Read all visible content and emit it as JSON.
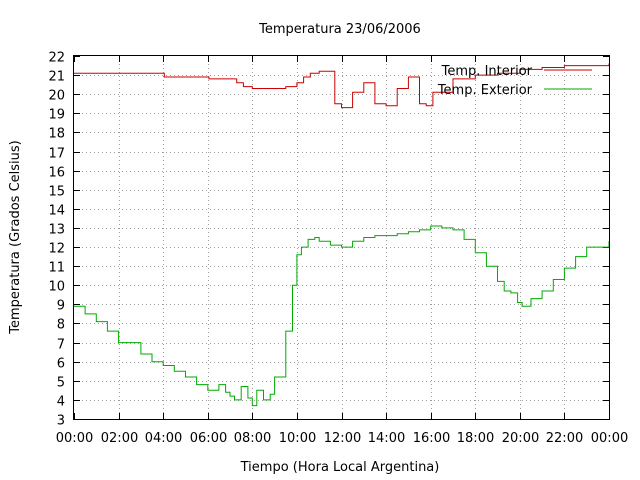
{
  "chart_data": {
    "type": "line",
    "title": "Temperatura 23/06/2006",
    "xlabel": "Tiempo (Hora Local Argentina)",
    "ylabel": "Temperatura (Grados Celsius)",
    "xlim": [
      0,
      24
    ],
    "ylim": [
      3,
      22
    ],
    "grid": true,
    "legend_position": "top-right",
    "x_tick_labels": [
      "00:00",
      "02:00",
      "04:00",
      "06:00",
      "08:00",
      "10:00",
      "12:00",
      "14:00",
      "16:00",
      "18:00",
      "20:00",
      "22:00",
      "00:00"
    ],
    "y_tick_labels": [
      "3",
      "4",
      "5",
      "6",
      "7",
      "8",
      "9",
      "10",
      "11",
      "12",
      "13",
      "14",
      "15",
      "16",
      "17",
      "18",
      "19",
      "20",
      "21",
      "22"
    ],
    "series": [
      {
        "name": "Temp. Interior",
        "color": "#cc0000",
        "x": [
          0,
          2,
          4,
          4.05,
          6,
          6.05,
          7,
          7.3,
          7.6,
          8,
          9,
          9.5,
          10,
          10.3,
          10.6,
          11,
          11.7,
          12,
          12.5,
          13,
          13.5,
          14,
          14.5,
          15,
          15.5,
          15.8,
          16.1,
          17,
          18,
          19,
          20,
          21,
          22,
          24
        ],
        "y": [
          21.1,
          21.1,
          21.1,
          20.9,
          20.9,
          20.8,
          20.8,
          20.6,
          20.4,
          20.3,
          20.3,
          20.4,
          20.6,
          20.9,
          21.1,
          21.2,
          19.5,
          19.3,
          20.1,
          20.6,
          19.5,
          19.4,
          20.3,
          20.9,
          19.5,
          19.4,
          20.1,
          20.8,
          21.0,
          21.1,
          21.3,
          21.4,
          21.5,
          21.6
        ]
      },
      {
        "name": "Temp. Exterior",
        "color": "#00aa00",
        "x": [
          0,
          0.5,
          1,
          1.5,
          2,
          3,
          3.5,
          4,
          4.5,
          5,
          5.5,
          6,
          6.5,
          6.8,
          7,
          7.2,
          7.5,
          7.8,
          8,
          8.2,
          8.5,
          8.8,
          9,
          9.5,
          9.8,
          10,
          10.2,
          10.5,
          10.8,
          11,
          11.5,
          12,
          12.5,
          13,
          13.5,
          14,
          14.5,
          15,
          15.5,
          16,
          16.5,
          17,
          17.5,
          18,
          18.5,
          19,
          19.3,
          19.6,
          19.9,
          20.1,
          20.5,
          21,
          21.5,
          22,
          22.5,
          23,
          24
        ],
        "y": [
          8.9,
          8.5,
          8.1,
          7.6,
          7.0,
          6.4,
          6.0,
          5.8,
          5.5,
          5.2,
          4.8,
          4.5,
          4.8,
          4.4,
          4.2,
          4.0,
          4.7,
          4.1,
          3.7,
          4.5,
          4.0,
          4.3,
          5.2,
          7.6,
          10.0,
          11.6,
          12.0,
          12.4,
          12.5,
          12.3,
          12.1,
          12.0,
          12.3,
          12.5,
          12.6,
          12.6,
          12.7,
          12.8,
          12.9,
          13.1,
          13.0,
          12.9,
          12.4,
          11.7,
          11.0,
          10.2,
          9.7,
          9.6,
          9.1,
          8.9,
          9.3,
          9.7,
          10.3,
          10.9,
          11.5,
          12.0,
          12.3
        ]
      }
    ]
  }
}
